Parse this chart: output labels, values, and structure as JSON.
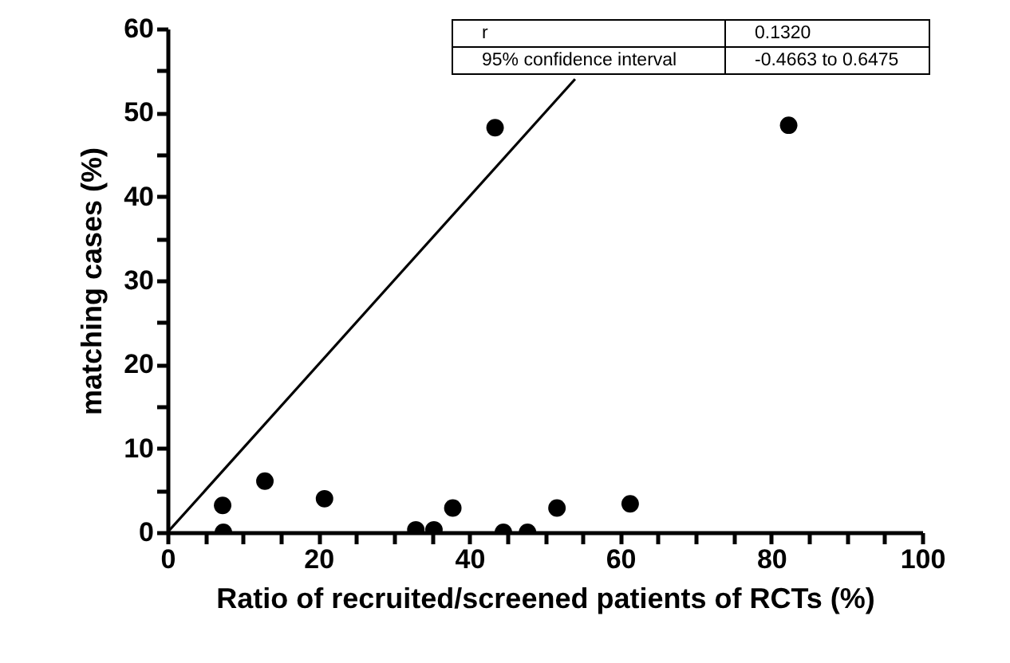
{
  "chart_data": {
    "type": "scatter",
    "xlabel": "Ratio of recruited/screened patients of RCTs (%)",
    "ylabel": "matching cases (%)",
    "xlim": [
      0,
      100
    ],
    "ylim": [
      0,
      60
    ],
    "xticks": [
      0,
      {
        "value": 5,
        "label": null
      },
      {
        "value": 10,
        "label": null
      },
      {
        "value": 15,
        "label": null
      },
      20,
      {
        "value": 25,
        "label": null
      },
      {
        "value": 30,
        "label": null
      },
      {
        "value": 35,
        "label": null
      },
      40,
      {
        "value": 45,
        "label": null
      },
      {
        "value": 50,
        "label": null
      },
      {
        "value": 55,
        "label": null
      },
      60,
      {
        "value": 65,
        "label": null
      },
      {
        "value": 70,
        "label": null
      },
      {
        "value": 75,
        "label": null
      },
      80,
      {
        "value": 85,
        "label": null
      },
      {
        "value": 90,
        "label": null
      },
      {
        "value": 95,
        "label": null
      },
      100
    ],
    "yticks": [
      0,
      {
        "value": 5,
        "label": null
      },
      10,
      {
        "value": 15,
        "label": null
      },
      20,
      {
        "value": 25,
        "label": null
      },
      30,
      {
        "value": 35,
        "label": null
      },
      40,
      {
        "value": 45,
        "label": null
      },
      50,
      {
        "value": 55,
        "label": null
      },
      60
    ],
    "grid": false,
    "marker": "circle",
    "series": [
      {
        "color": "#000000",
        "x": [
          7.3,
          7.4,
          12.9,
          20.8,
          32.9,
          35.3,
          37.8,
          44.5,
          47.7,
          51.6,
          61.3,
          43.4,
          82.3
        ],
        "values": [
          3.2,
          0,
          6.1,
          4.0,
          0.3,
          0.3,
          2.9,
          0,
          0,
          2.9,
          3.4,
          48.2,
          48.5
        ]
      },
      {
        "type": "line",
        "color": "#000000",
        "line_style": "solid",
        "marker": "none",
        "x": [
          0,
          54
        ],
        "values": [
          0,
          54
        ]
      }
    ],
    "annotations": [
      "r",
      "0.1320",
      "95% confidence interval",
      "-0.4663 to 0.6475"
    ]
  }
}
